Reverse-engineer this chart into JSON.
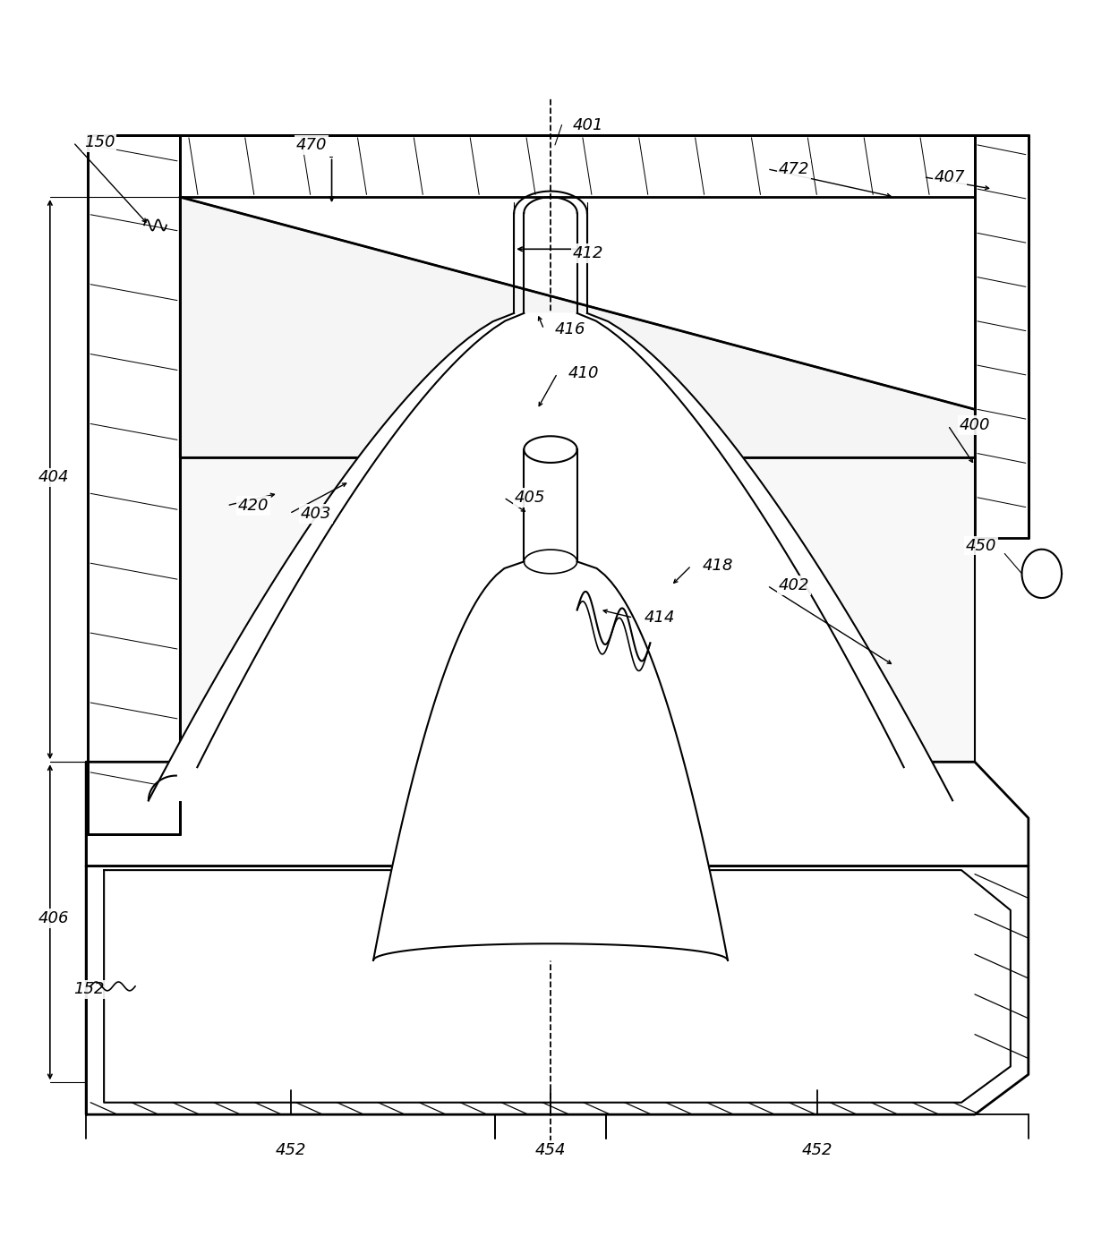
{
  "bg_color": "#ffffff",
  "line_color": "#000000",
  "figsize": [
    12.4,
    13.82
  ],
  "dpi": 100,
  "lw_thick": 2.0,
  "lw_main": 1.5,
  "lw_thin": 0.9
}
